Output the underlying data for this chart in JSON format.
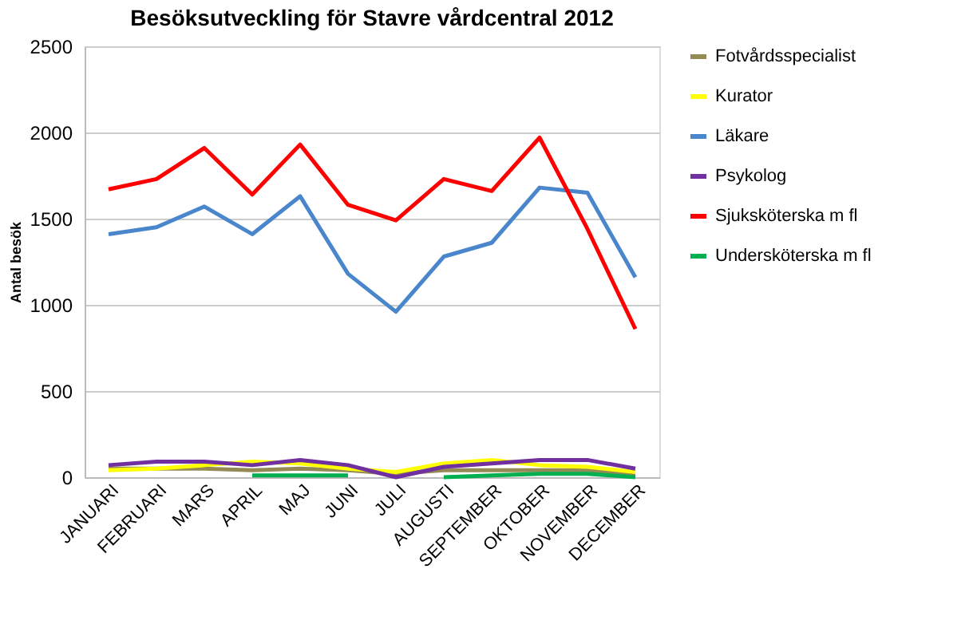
{
  "chart_data": {
    "type": "line",
    "title": "Besöksutveckling för Stavre vårdcentral 2012",
    "ylabel": "Antal besök",
    "categories": [
      "JANUARI",
      "FEBRUARI",
      "MARS",
      "APRIL",
      "MAJ",
      "JUNI",
      "JULI",
      "AUGUSTI",
      "SEPTEMBER",
      "OKTOBER",
      "NOVEMBER",
      "DECEMBER"
    ],
    "series": [
      {
        "name": "Fotvårdsspecialist",
        "color": "#948a54",
        "values": [
          50,
          50,
          50,
          40,
          50,
          40,
          20,
          40,
          40,
          40,
          40,
          20
        ]
      },
      {
        "name": "Kurator",
        "color": "#ffff00",
        "values": [
          40,
          50,
          70,
          90,
          80,
          50,
          30,
          80,
          100,
          70,
          60,
          30
        ]
      },
      {
        "name": "Läkare",
        "color": "#4a86cc",
        "values": [
          1410,
          1450,
          1570,
          1410,
          1630,
          1180,
          960,
          1280,
          1360,
          1680,
          1650,
          1160
        ]
      },
      {
        "name": "Psykolog",
        "color": "#7030a0",
        "values": [
          70,
          90,
          90,
          70,
          100,
          70,
          0,
          60,
          80,
          100,
          100,
          50
        ]
      },
      {
        "name": "Sjuksköterska m fl",
        "color": "#ff0000",
        "values": [
          1670,
          1730,
          1910,
          1640,
          1930,
          1580,
          1490,
          1730,
          1660,
          1970,
          1440,
          860
        ]
      },
      {
        "name": "Undersköterska m fl",
        "color": "#00b050",
        "values": [
          null,
          null,
          null,
          10,
          10,
          10,
          null,
          0,
          10,
          20,
          20,
          0
        ]
      }
    ],
    "ylim": [
      0,
      2500
    ],
    "yticks": [
      0,
      500,
      1000,
      1500,
      2000,
      2500
    ],
    "grid": "y",
    "legend": "right",
    "marker": "none",
    "line_style": "solid"
  }
}
